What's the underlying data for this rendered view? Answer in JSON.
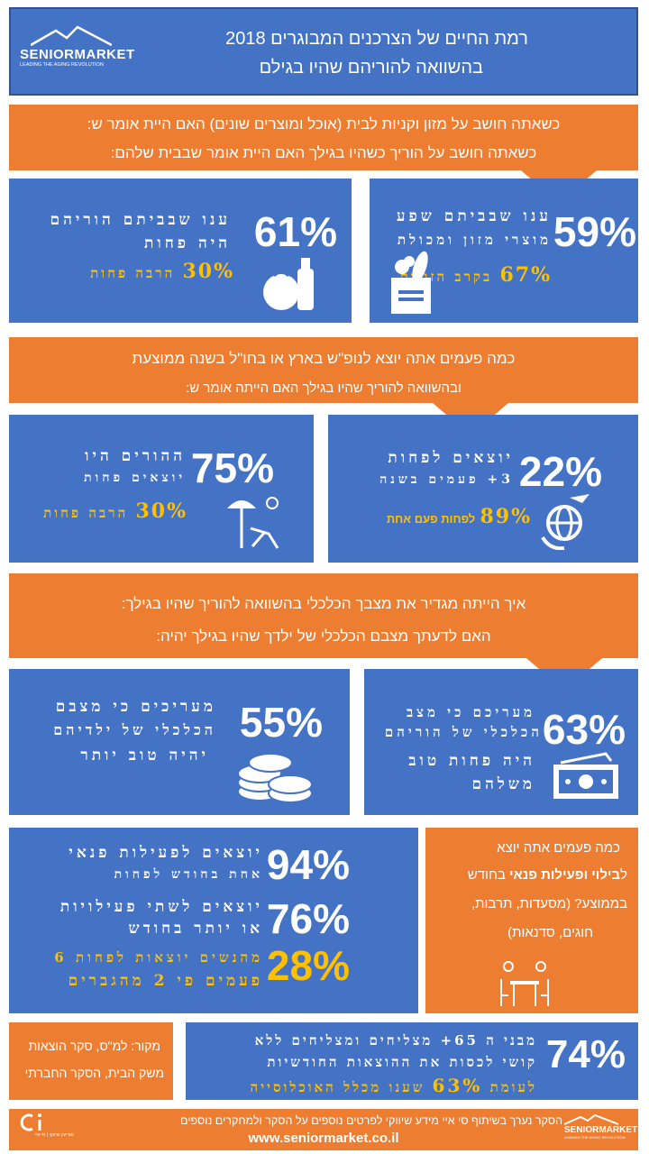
{
  "header": {
    "logo_text": "SENIORMARKET",
    "logo_tagline": "LEADING THE AGING REVOLUTION",
    "title_line1": "רמת החיים של הצרכנים המבוגרים 2018",
    "title_line2": "בהשוואה להוריהם שהיו בגילם"
  },
  "section1": {
    "question_line1": "כשאתה חושב על מזון וקניות לבית (אוכל ומוצרים שונים) האם היית אומר ש:",
    "question_line2": "כשאתה חושב על הוריך כשהיו בגילך האם היית אומר שבבית שלהם:",
    "right": {
      "pct": "59%",
      "text_line1": "ענו שבביתם שפע",
      "text_line2": "מוצרי מזון ומכולת",
      "sub_pct": "67%",
      "sub_text": "בקרב הזוגות",
      "icon": "grocery-bag-icon"
    },
    "left": {
      "pct": "61%",
      "text_line1": "ענו שבביתם הוריהם",
      "text_line2": "היה פחות",
      "sub_pct": "30%",
      "sub_text": "הרבה פחות",
      "icon": "tomato-milk-icon"
    }
  },
  "section2": {
    "question_line1": "כמה פעמים אתה יוצא לנופ\"ש בארץ או בחו\"ל בשנה ממוצעת",
    "question_line2": "ובהשוואה להוריך שהיו בגילך האם הייתה אומר ש:",
    "right": {
      "pct": "22%",
      "text_line1": "יוצאים לפחות",
      "text_line2": "3+ פעמים בשנה",
      "sub_pct": "89%",
      "sub_text": "לפחות פעם אחת",
      "icon": "globe-plane-icon"
    },
    "left": {
      "pct": "75%",
      "text_line1": "ההורים היו",
      "text_line2": "יוצאים פחות",
      "sub_pct": "30%",
      "sub_text": "הרבה פחות",
      "icon": "beach-chair-icon"
    }
  },
  "section3": {
    "question_line1": "איך הייתה מגדיר את מצבך הכלכלי בהשוואה להוריך שהיו בגילך:",
    "question_line2": "האם לדעתך מצבם הכלכלי של ילדך שהיו בגילך יהיה:",
    "right": {
      "pct": "63%",
      "text_line1": "מעריכם כי מצב",
      "text_line2": "הכלכלי של הוריהם",
      "text_line3": "היה פחות טוב",
      "text_line4": "משלהם",
      "icon": "money-bill-icon"
    },
    "left": {
      "pct": "55%",
      "text_line1": "מעריכים כי מצבם",
      "text_line2": "הכלכלי של ילדיהם",
      "text_line3": "יהיה טוב יותר",
      "icon": "coins-icon"
    }
  },
  "section4": {
    "question_line1": "כמה פעמים אתה יוצא",
    "question_line2_prefix": "ל",
    "question_line2_bold": "בילוי ופעילות פנאי",
    "question_line2_suffix": " בחודש",
    "question_line3": "בממוצע? (מסעדות, תרבות,",
    "question_line4": "חוגים, סדנאות)",
    "icon": "dining-table-icon",
    "stats": [
      {
        "pct": "94%",
        "text_line1": "יוצאים לפעילות פנאי",
        "text_line2": "אחת בחודש לפחות"
      },
      {
        "pct": "76%",
        "text_line1": "יוצאים לשתי פעילויות",
        "text_line2": "או יותר בחודש"
      },
      {
        "pct": "28%",
        "text_line1": "מהנשים יוצאות לפחות 6",
        "text_line2": "פעמים פי 2 מהגברים"
      }
    ]
  },
  "section5": {
    "source_line1": "מקור: למ\"ס, סקר הוצאות",
    "source_line2": "משק הבית, הסקר החברתי",
    "pct": "74%",
    "text_line1": "מבני ה 65+ מצליחים ומצליחים ללא",
    "text_line2": "קושי לכסות את ההוצאות החודשיות",
    "text_line3_prefix": "לעומת ",
    "text_line3_pct": "63%",
    "text_line3_suffix": " שענו מכלל האוכלוסייה"
  },
  "footer": {
    "text": "הסקר נערך בשיתוף סי איי מידע שיווקי לפרטים נוספים על הסקר ולמחקרים נוספים",
    "url": "www.seniormarket.co.il",
    "left_logo_caption": "מודיעין שיווקי | סי איי",
    "right_logo_text": "SENIORMARKET",
    "right_logo_tagline": "LEADING THE AGING REVOLUTION"
  },
  "colors": {
    "blue": "#4472c4",
    "orange": "#ed7d31",
    "gold": "#ffc000"
  }
}
